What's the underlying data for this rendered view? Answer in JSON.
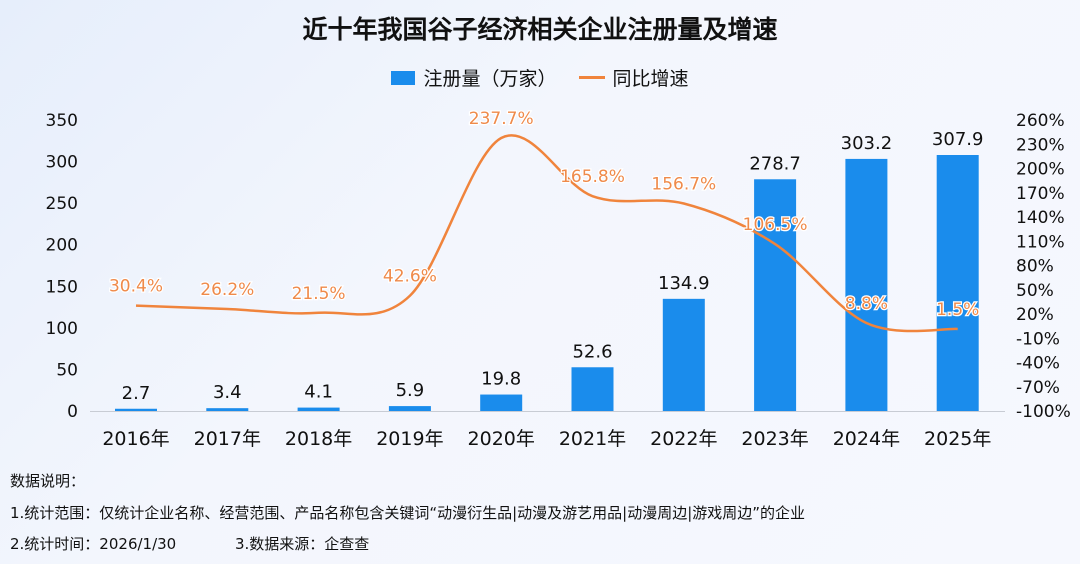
{
  "chart_data": {
    "type": "bar+line",
    "title": "近十年我国谷子经济相关企业注册量及增速",
    "categories": [
      "2016年",
      "2017年",
      "2018年",
      "2019年",
      "2020年",
      "2021年",
      "2022年",
      "2023年",
      "2024年",
      "2025年"
    ],
    "series": [
      {
        "name": "注册量（万家）",
        "type": "bar",
        "axis": "left",
        "color": "#1a8cec",
        "values": [
          2.7,
          3.4,
          4.1,
          5.9,
          19.8,
          52.6,
          134.9,
          278.7,
          303.2,
          307.9
        ],
        "labels": [
          "2.7",
          "3.4",
          "4.1",
          "5.9",
          "19.8",
          "52.6",
          "134.9",
          "278.7",
          "303.2",
          "307.9"
        ]
      },
      {
        "name": "同比增速",
        "type": "line",
        "axis": "right",
        "color": "#f0843c",
        "values": [
          30.4,
          26.2,
          21.5,
          42.6,
          237.7,
          165.8,
          156.7,
          106.5,
          8.8,
          1.5
        ],
        "labels": [
          "30.4%",
          "26.2%",
          "21.5%",
          "42.6%",
          "237.7%",
          "165.8%",
          "156.7%",
          "106.5%",
          "8.8%",
          "1.5%"
        ]
      }
    ],
    "left_axis": {
      "ylim": [
        0,
        350
      ],
      "ticks": [
        "0",
        "50",
        "100",
        "150",
        "200",
        "250",
        "300",
        "350"
      ]
    },
    "right_axis": {
      "ylim": [
        -100,
        260
      ],
      "ticks": [
        "-100%",
        "-70%",
        "-40%",
        "-10%",
        "20%",
        "50%",
        "80%",
        "110%",
        "140%",
        "170%",
        "200%",
        "230%",
        "260%"
      ]
    },
    "grid": false,
    "legend": "top-center"
  },
  "notes": {
    "heading": "数据说明：",
    "line1": "1.统计范围：仅统计企业名称、经营范围、产品名称包含关键词“动漫衍生品|动漫及游艺用品|动漫周边|游戏周边”的企业",
    "line2a": "2.统计时间：2026/1/30",
    "line2b": "3.数据来源：企查查"
  }
}
